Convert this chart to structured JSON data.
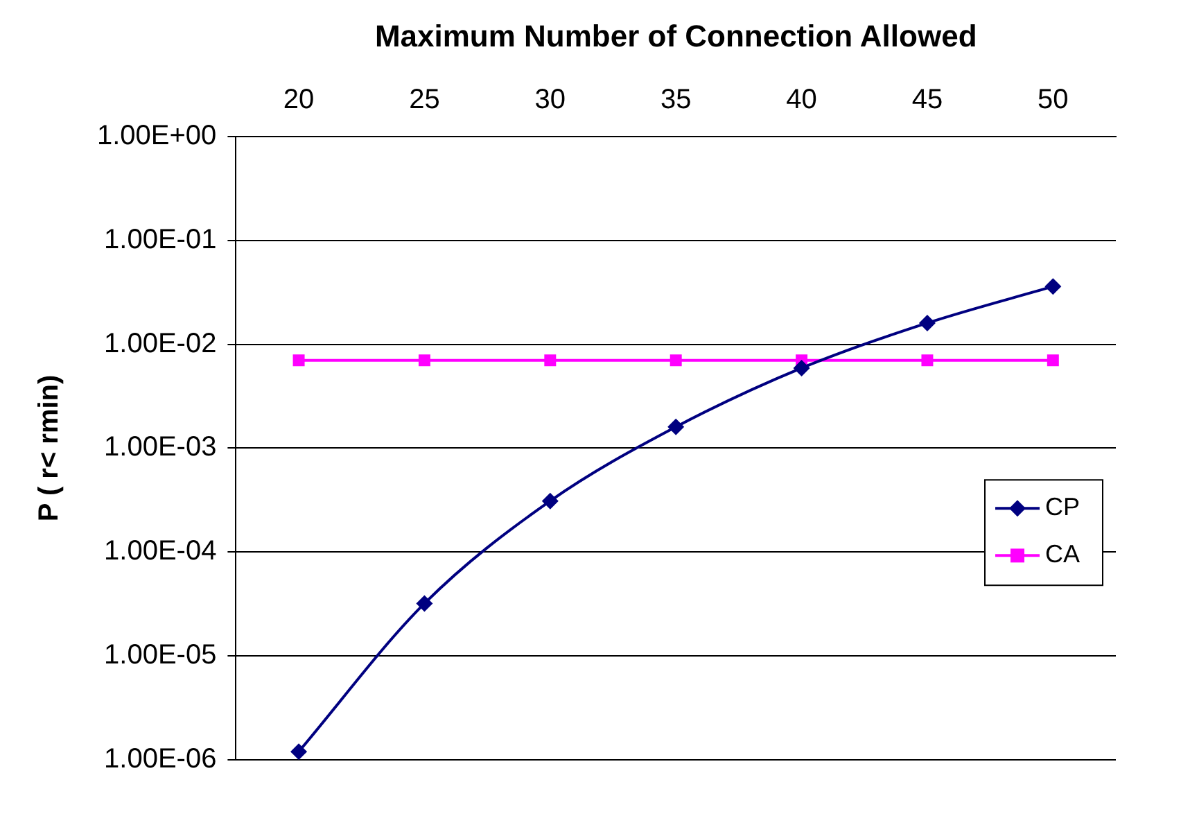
{
  "chart_data": {
    "type": "line",
    "xlabel": "Maximum Number of Connection Allowed",
    "ylabel": "P ( r< rmin)",
    "categories": [
      "20",
      "25",
      "30",
      "35",
      "40",
      "45",
      "50"
    ],
    "series": [
      {
        "name": "CP",
        "color": "#000080",
        "marker": "diamond",
        "values": [
          1.2e-06,
          3.2e-05,
          0.00031,
          0.0016,
          0.0059,
          0.016,
          0.036
        ]
      },
      {
        "name": "CA",
        "color": "#ff00ff",
        "marker": "square",
        "values": [
          0.007,
          0.007,
          0.007,
          0.007,
          0.007,
          0.007,
          0.007
        ]
      }
    ],
    "log": "y",
    "ylim": [
      1e-06,
      1
    ],
    "yticks": [
      {
        "value": 1e-06,
        "label": "1.00E-06"
      },
      {
        "value": 1e-05,
        "label": "1.00E-05"
      },
      {
        "value": 0.0001,
        "label": "1.00E-04"
      },
      {
        "value": 0.001,
        "label": "1.00E-03"
      },
      {
        "value": 0.01,
        "label": "1.00E-02"
      },
      {
        "value": 0.1,
        "label": "1.00E-01"
      },
      {
        "value": 1,
        "label": "1.00E+00"
      }
    ],
    "grid": "y",
    "legend": "right",
    "line_style": "solid"
  }
}
